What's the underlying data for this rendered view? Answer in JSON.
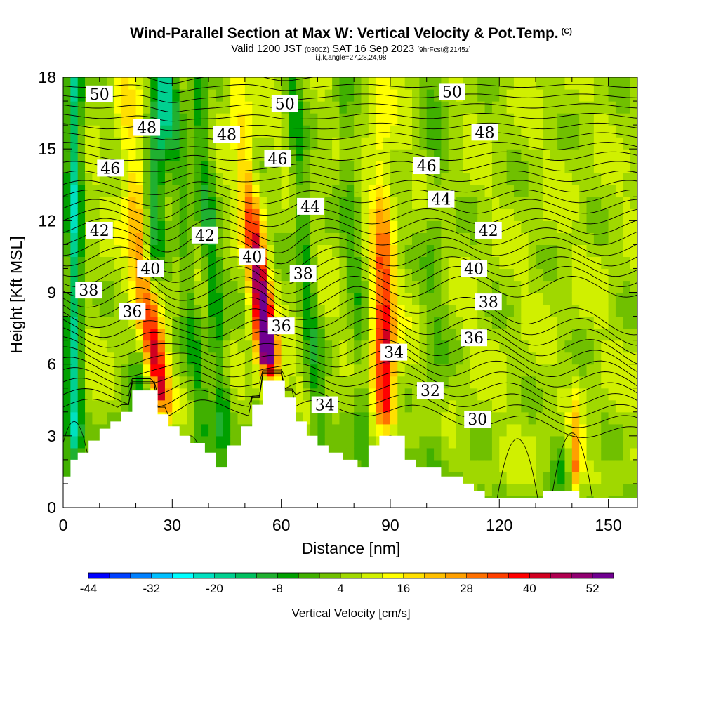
{
  "header": {
    "title": "Wind-Parallel Section at Max W: Vertical Velocity & Pot.Temp.",
    "copyright": "(C)",
    "valid_a": "Valid 1200 JST",
    "valid_utc": "(0300Z)",
    "valid_b": "SAT 16 Sep 2023",
    "forecast": "[9hrFcst@2145z]",
    "indices": "i,j,k,angle=27,28,24,98"
  },
  "chart_data": {
    "type": "heatmap",
    "title": "Wind-Parallel Section at Max W: Vertical Velocity & Pot.Temp.",
    "xlabel": "Distance [nm]",
    "ylabel": "Height [Kft MSL]",
    "xlim": [
      0,
      158
    ],
    "ylim": [
      0,
      18
    ],
    "x_ticks": [
      0,
      30,
      60,
      90,
      120,
      150
    ],
    "y_ticks": [
      0,
      3,
      6,
      9,
      12,
      15,
      18
    ],
    "grid": false,
    "colorbar": {
      "label": "Vertical Velocity [cm/s]",
      "ticks": [
        -44,
        -32,
        -20,
        -8,
        4,
        16,
        28,
        40,
        52
      ],
      "range": [
        -44,
        56
      ],
      "colors": [
        "#0000ff",
        "#0040ff",
        "#0080ff",
        "#00c0ff",
        "#00ffff",
        "#00e0c0",
        "#00d090",
        "#00c060",
        "#20b030",
        "#00a000",
        "#40b000",
        "#70c000",
        "#a0d800",
        "#d0f000",
        "#ffff00",
        "#ffe000",
        "#ffc000",
        "#ffa000",
        "#ff7000",
        "#ff4000",
        "#ff0000",
        "#d00020",
        "#b00050",
        "#900070",
        "#700090"
      ]
    },
    "terrain_profile": [
      [
        0,
        1.3
      ],
      [
        2,
        1.3
      ],
      [
        2,
        2.0
      ],
      [
        4,
        2.0
      ],
      [
        4,
        2.3
      ],
      [
        7,
        2.3
      ],
      [
        7,
        2.8
      ],
      [
        10,
        2.8
      ],
      [
        10,
        3.3
      ],
      [
        13,
        3.3
      ],
      [
        13,
        3.6
      ],
      [
        16,
        3.6
      ],
      [
        16,
        4.0
      ],
      [
        19,
        4.0
      ],
      [
        19,
        4.9
      ],
      [
        26,
        4.9
      ],
      [
        26,
        3.9
      ],
      [
        29,
        3.9
      ],
      [
        29,
        3.4
      ],
      [
        32,
        3.4
      ],
      [
        32,
        3.0
      ],
      [
        35,
        3.0
      ],
      [
        35,
        2.7
      ],
      [
        39,
        2.7
      ],
      [
        39,
        2.3
      ],
      [
        42,
        2.3
      ],
      [
        42,
        1.7
      ],
      [
        45,
        1.7
      ],
      [
        45,
        2.6
      ],
      [
        49,
        2.6
      ],
      [
        49,
        3.4
      ],
      [
        52,
        3.4
      ],
      [
        52,
        4.3
      ],
      [
        55,
        4.3
      ],
      [
        55,
        5.3
      ],
      [
        61,
        5.3
      ],
      [
        61,
        4.6
      ],
      [
        64,
        4.6
      ],
      [
        64,
        3.6
      ],
      [
        67,
        3.6
      ],
      [
        67,
        3.0
      ],
      [
        70,
        3.0
      ],
      [
        70,
        2.6
      ],
      [
        73,
        2.6
      ],
      [
        73,
        2.3
      ],
      [
        77,
        2.3
      ],
      [
        77,
        2.0
      ],
      [
        81,
        2.0
      ],
      [
        81,
        1.7
      ],
      [
        84,
        1.7
      ],
      [
        84,
        2.6
      ],
      [
        87,
        2.6
      ],
      [
        87,
        3.0
      ],
      [
        94,
        3.0
      ],
      [
        94,
        2.0
      ],
      [
        97,
        2.0
      ],
      [
        97,
        1.7
      ],
      [
        104,
        1.7
      ],
      [
        104,
        1.3
      ],
      [
        110,
        1.3
      ],
      [
        110,
        1.0
      ],
      [
        113,
        1.0
      ],
      [
        113,
        0.7
      ],
      [
        116,
        0.7
      ],
      [
        116,
        0.4
      ],
      [
        132,
        0.4
      ],
      [
        132,
        0.7
      ],
      [
        142,
        0.7
      ],
      [
        142,
        0.4
      ],
      [
        158,
        0.4
      ]
    ],
    "velocity_bands": [
      {
        "x_base": 3,
        "slope_nm_per_kft": 0,
        "half_width_nm": 2.2,
        "w": -24
      },
      {
        "x_base": 20,
        "slope_nm_per_kft": 0.4,
        "half_width_nm": 3.2,
        "w": -20
      },
      {
        "x_base": 29,
        "slope_nm_per_kft": -0.68,
        "half_width_nm": 3.2,
        "w": 36
      },
      {
        "x_base": 40,
        "slope_nm_per_kft": -0.6,
        "half_width_nm": 2.6,
        "w": -10
      },
      {
        "x_base": 46,
        "slope_nm_per_kft": -0.5,
        "half_width_nm": 2.4,
        "w": -14
      },
      {
        "x_base": 61,
        "slope_nm_per_kft": -0.75,
        "half_width_nm": 2.6,
        "w": 44
      },
      {
        "x_base": 72,
        "slope_nm_per_kft": -0.5,
        "half_width_nm": 2.4,
        "w": -12
      },
      {
        "x_base": 84,
        "slope_nm_per_kft": -0.4,
        "half_width_nm": 2.6,
        "w": -8
      },
      {
        "x_base": 89,
        "slope_nm_per_kft": -0.1,
        "half_width_nm": 3.0,
        "w": 28
      },
      {
        "x_base": 102,
        "slope_nm_per_kft": 0,
        "half_width_nm": 3.5,
        "w": -6
      },
      {
        "x_base": 141,
        "slope_nm_per_kft": 0,
        "half_width_nm": 1.6,
        "w": 30
      },
      {
        "x_base": 137,
        "slope_nm_per_kft": 0,
        "half_width_nm": 2.5,
        "w": -10
      }
    ],
    "isentrope_labels": [
      {
        "text": "50",
        "x": 10,
        "y": 17.3
      },
      {
        "text": "48",
        "x": 23,
        "y": 15.9
      },
      {
        "text": "46",
        "x": 13,
        "y": 14.2
      },
      {
        "text": "42",
        "x": 10,
        "y": 11.6
      },
      {
        "text": "40",
        "x": 24,
        "y": 10.0
      },
      {
        "text": "38",
        "x": 7,
        "y": 9.1
      },
      {
        "text": "36",
        "x": 19,
        "y": 8.2
      },
      {
        "text": "48",
        "x": 45,
        "y": 15.6
      },
      {
        "text": "42",
        "x": 39,
        "y": 11.4
      },
      {
        "text": "50",
        "x": 61,
        "y": 16.9
      },
      {
        "text": "46",
        "x": 59,
        "y": 14.6
      },
      {
        "text": "40",
        "x": 52,
        "y": 10.5
      },
      {
        "text": "44",
        "x": 68,
        "y": 12.6
      },
      {
        "text": "38",
        "x": 66,
        "y": 9.8
      },
      {
        "text": "36",
        "x": 60,
        "y": 7.6
      },
      {
        "text": "34",
        "x": 72,
        "y": 4.3
      },
      {
        "text": "34",
        "x": 91,
        "y": 6.5
      },
      {
        "text": "32",
        "x": 101,
        "y": 4.9
      },
      {
        "text": "30",
        "x": 114,
        "y": 3.7
      },
      {
        "text": "50",
        "x": 107,
        "y": 17.4
      },
      {
        "text": "48",
        "x": 116,
        "y": 15.7
      },
      {
        "text": "46",
        "x": 100,
        "y": 14.3
      },
      {
        "text": "44",
        "x": 104,
        "y": 12.9
      },
      {
        "text": "42",
        "x": 117,
        "y": 11.6
      },
      {
        "text": "40",
        "x": 113,
        "y": 10.0
      },
      {
        "text": "38",
        "x": 117,
        "y": 8.6
      },
      {
        "text": "36",
        "x": 113,
        "y": 7.1
      }
    ]
  }
}
